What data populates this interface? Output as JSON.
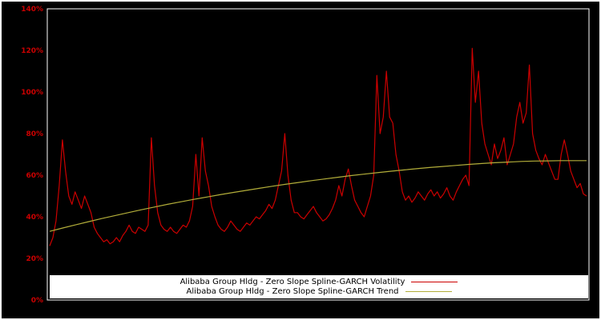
{
  "figure": {
    "background": "#000000",
    "frame_color": "#ffffff",
    "axis_label_color": "#cc0000"
  },
  "chart_data": {
    "type": "line",
    "title": "",
    "xlabel": "",
    "ylabel": "",
    "ylim": [
      0,
      140
    ],
    "y_ticks": [
      "0%",
      "20%",
      "40%",
      "60%",
      "80%",
      "100%",
      "120%",
      "140%"
    ],
    "x_axis_labels_visible": false,
    "grid": false,
    "legend_position": "bottom-inside",
    "series": [
      {
        "name": "Alibaba Group Hldg - Zero Slope Spline-GARCH Volatility",
        "color": "#cc0000",
        "values": [
          26,
          30,
          38,
          55,
          77,
          62,
          50,
          46,
          52,
          48,
          44,
          50,
          46,
          42,
          35,
          32,
          30,
          28,
          29,
          27,
          28,
          30,
          28,
          31,
          33,
          36,
          33,
          32,
          35,
          34,
          33,
          36,
          78,
          55,
          42,
          36,
          34,
          33,
          35,
          33,
          32,
          34,
          36,
          35,
          38,
          45,
          70,
          50,
          78,
          62,
          55,
          45,
          40,
          36,
          34,
          33,
          35,
          38,
          36,
          34,
          33,
          35,
          37,
          36,
          38,
          40,
          39,
          41,
          43,
          46,
          44,
          48,
          55,
          62,
          80,
          60,
          48,
          42,
          42,
          40,
          39,
          41,
          43,
          45,
          42,
          40,
          38,
          39,
          41,
          44,
          48,
          55,
          50,
          58,
          63,
          55,
          48,
          45,
          42,
          40,
          45,
          50,
          60,
          108,
          80,
          88,
          110,
          88,
          85,
          70,
          62,
          52,
          48,
          50,
          47,
          49,
          52,
          50,
          48,
          51,
          53,
          50,
          52,
          49,
          51,
          54,
          50,
          48,
          52,
          55,
          58,
          60,
          55,
          121,
          95,
          110,
          85,
          75,
          70,
          65,
          75,
          68,
          72,
          78,
          65,
          70,
          75,
          88,
          95,
          85,
          90,
          113,
          80,
          72,
          68,
          65,
          70,
          66,
          62,
          58,
          58,
          70,
          77,
          70,
          62,
          58,
          54,
          56,
          51,
          50
        ]
      },
      {
        "name": "Alibaba Group Hldg - Zero Slope Spline-GARCH Trend",
        "color": "#b3ae3a",
        "values": [
          33.0,
          34.6,
          36.2,
          37.7,
          39.2,
          40.6,
          42.0,
          43.4,
          44.7,
          46.0,
          47.2,
          48.4,
          49.5,
          50.6,
          51.7,
          52.7,
          53.7,
          54.7,
          55.6,
          56.5,
          57.4,
          58.2,
          59.0,
          59.8,
          60.5,
          61.2,
          61.9,
          62.5,
          63.1,
          63.7,
          64.2,
          64.7,
          65.2,
          65.6,
          66.0,
          66.3,
          66.6,
          66.8,
          66.9,
          67.0,
          67.0,
          67.0
        ]
      }
    ]
  }
}
